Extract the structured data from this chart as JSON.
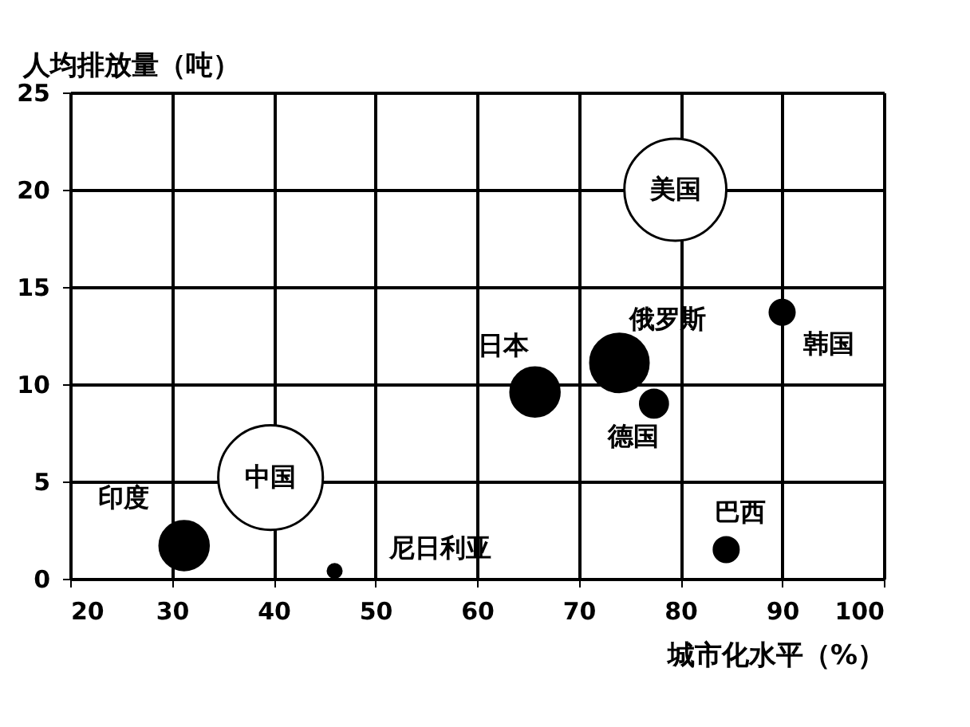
{
  "chart_data": {
    "type": "bubble",
    "xlabel": "城市化水平（%）",
    "ylabel": "人均排放量（吨）",
    "xlim": [
      20,
      100
    ],
    "xticks": [
      20,
      30,
      40,
      50,
      60,
      70,
      80,
      90,
      100
    ],
    "ylim": [
      0,
      25
    ],
    "yticks": [
      0,
      5,
      10,
      15,
      20,
      25
    ],
    "grid": true,
    "legend": false,
    "series": [
      {
        "name": "美国",
        "color": "#ffffff",
        "x": [
          79.5
        ],
        "values": [
          20
        ],
        "sizes": [
          0.95
        ]
      },
      {
        "name": "中国",
        "color": "#ffffff",
        "x": [
          39.7
        ],
        "values": [
          5.2
        ],
        "sizes": [
          1
        ]
      },
      {
        "name": "印度",
        "color": "#000000",
        "x": [
          31.2
        ],
        "values": [
          1.7
        ],
        "sizes": [
          0.22
        ]
      },
      {
        "name": "尼日利亚",
        "color": "#000000",
        "x": [
          46
        ],
        "values": [
          0.4
        ],
        "sizes": [
          0.017
        ]
      },
      {
        "name": "日本",
        "color": "#000000",
        "x": [
          65.7
        ],
        "values": [
          9.6
        ],
        "sizes": [
          0.22
        ]
      },
      {
        "name": "俄罗斯",
        "color": "#000000",
        "x": [
          74
        ],
        "values": [
          11.1
        ],
        "sizes": [
          0.31
        ]
      },
      {
        "name": "德国",
        "color": "#000000",
        "x": [
          77.4
        ],
        "values": [
          9
        ],
        "sizes": [
          0.07
        ]
      },
      {
        "name": "韩国",
        "color": "#000000",
        "x": [
          90
        ],
        "values": [
          13.7
        ],
        "sizes": [
          0.056
        ]
      },
      {
        "name": "巴西",
        "color": "#000000",
        "x": [
          84.5
        ],
        "values": [
          1.5
        ],
        "sizes": [
          0.056
        ]
      }
    ]
  }
}
